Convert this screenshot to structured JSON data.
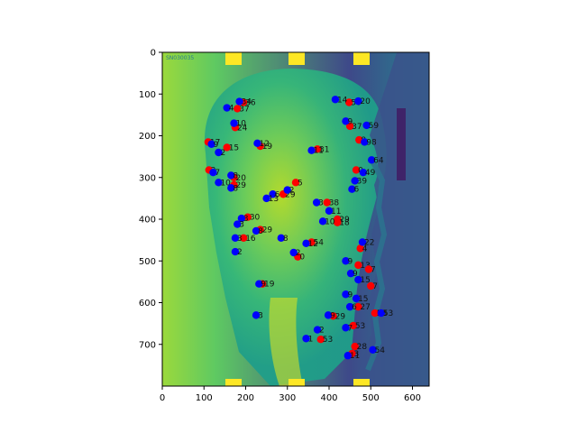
{
  "chart_data": {
    "type": "scatter",
    "title": "",
    "xlabel": "",
    "ylabel": "",
    "xlim": [
      0,
      640
    ],
    "ylim": [
      800,
      0
    ],
    "y_inverted": true,
    "background": "grayscale lateral cephalometric x-ray rendered with viridis colormap",
    "image_corner_text": "SN030035",
    "colors": {
      "red": "#ff0000",
      "blue": "#0000ff"
    },
    "x_ticks": [
      "0",
      "100",
      "200",
      "300",
      "400",
      "500",
      "600"
    ],
    "y_ticks": [
      "0",
      "100",
      "200",
      "300",
      "400",
      "500",
      "600",
      "700"
    ],
    "series": [
      {
        "color": "red",
        "points": [
          {
            "x": 195,
            "y": 120,
            "label": "36"
          },
          {
            "x": 180,
            "y": 135,
            "label": "37"
          },
          {
            "x": 175,
            "y": 180,
            "label": "24"
          },
          {
            "x": 235,
            "y": 225,
            "label": "19"
          },
          {
            "x": 110,
            "y": 215,
            "label": "17"
          },
          {
            "x": 155,
            "y": 228,
            "label": "15"
          },
          {
            "x": 112,
            "y": 282,
            "label": "2"
          },
          {
            "x": 172,
            "y": 300,
            "label": "20"
          },
          {
            "x": 172,
            "y": 318,
            "label": "29"
          },
          {
            "x": 372,
            "y": 232,
            "label": "31"
          },
          {
            "x": 448,
            "y": 120,
            "label": "50"
          },
          {
            "x": 450,
            "y": 177,
            "label": "37"
          },
          {
            "x": 472,
            "y": 210,
            "label": "8"
          },
          {
            "x": 465,
            "y": 282,
            "label": "0"
          },
          {
            "x": 290,
            "y": 340,
            "label": "29"
          },
          {
            "x": 320,
            "y": 312,
            "label": "5"
          },
          {
            "x": 205,
            "y": 395,
            "label": "30"
          },
          {
            "x": 235,
            "y": 425,
            "label": "29"
          },
          {
            "x": 195,
            "y": 445,
            "label": "16"
          },
          {
            "x": 395,
            "y": 360,
            "label": "38"
          },
          {
            "x": 420,
            "y": 400,
            "label": "29"
          },
          {
            "x": 420,
            "y": 408,
            "label": "18"
          },
          {
            "x": 325,
            "y": 490,
            "label": "0"
          },
          {
            "x": 358,
            "y": 455,
            "label": "54"
          },
          {
            "x": 240,
            "y": 555,
            "label": "19"
          },
          {
            "x": 475,
            "y": 470,
            "label": "4"
          },
          {
            "x": 470,
            "y": 510,
            "label": "13"
          },
          {
            "x": 495,
            "y": 520,
            "label": "7"
          },
          {
            "x": 500,
            "y": 560,
            "label": "7"
          },
          {
            "x": 470,
            "y": 610,
            "label": "27"
          },
          {
            "x": 458,
            "y": 655,
            "label": "53"
          },
          {
            "x": 510,
            "y": 625,
            "label": "53"
          },
          {
            "x": 410,
            "y": 632,
            "label": "29"
          },
          {
            "x": 380,
            "y": 688,
            "label": "53"
          },
          {
            "x": 462,
            "y": 705,
            "label": "28"
          },
          {
            "x": 455,
            "y": 722,
            "label": "3"
          }
        ]
      },
      {
        "color": "blue",
        "points": [
          {
            "x": 185,
            "y": 118,
            "label": "34"
          },
          {
            "x": 155,
            "y": 133,
            "label": "4"
          },
          {
            "x": 172,
            "y": 170,
            "label": "10"
          },
          {
            "x": 228,
            "y": 218,
            "label": "12"
          },
          {
            "x": 118,
            "y": 220,
            "label": "9"
          },
          {
            "x": 135,
            "y": 240,
            "label": "2"
          },
          {
            "x": 122,
            "y": 288,
            "label": "7"
          },
          {
            "x": 165,
            "y": 295,
            "label": "8"
          },
          {
            "x": 135,
            "y": 312,
            "label": "10"
          },
          {
            "x": 165,
            "y": 325,
            "label": "8"
          },
          {
            "x": 358,
            "y": 235,
            "label": "11"
          },
          {
            "x": 415,
            "y": 113,
            "label": "14"
          },
          {
            "x": 470,
            "y": 117,
            "label": "20"
          },
          {
            "x": 440,
            "y": 165,
            "label": "9"
          },
          {
            "x": 490,
            "y": 175,
            "label": "59"
          },
          {
            "x": 485,
            "y": 215,
            "label": "98"
          },
          {
            "x": 502,
            "y": 258,
            "label": "64"
          },
          {
            "x": 482,
            "y": 288,
            "label": "49"
          },
          {
            "x": 462,
            "y": 308,
            "label": "39"
          },
          {
            "x": 455,
            "y": 328,
            "label": "6"
          },
          {
            "x": 300,
            "y": 330,
            "label": "2"
          },
          {
            "x": 265,
            "y": 340,
            "label": "6"
          },
          {
            "x": 250,
            "y": 350,
            "label": "13"
          },
          {
            "x": 190,
            "y": 398,
            "label": "3"
          },
          {
            "x": 180,
            "y": 412,
            "label": "3"
          },
          {
            "x": 225,
            "y": 428,
            "label": "8"
          },
          {
            "x": 175,
            "y": 445,
            "label": "3"
          },
          {
            "x": 175,
            "y": 478,
            "label": "2"
          },
          {
            "x": 285,
            "y": 445,
            "label": "8"
          },
          {
            "x": 370,
            "y": 360,
            "label": "3"
          },
          {
            "x": 400,
            "y": 380,
            "label": "11"
          },
          {
            "x": 385,
            "y": 405,
            "label": "10"
          },
          {
            "x": 315,
            "y": 480,
            "label": "2"
          },
          {
            "x": 345,
            "y": 458,
            "label": "12"
          },
          {
            "x": 480,
            "y": 455,
            "label": "22"
          },
          {
            "x": 440,
            "y": 500,
            "label": "9"
          },
          {
            "x": 452,
            "y": 530,
            "label": "9"
          },
          {
            "x": 470,
            "y": 545,
            "label": "15"
          },
          {
            "x": 232,
            "y": 555,
            "label": "9"
          },
          {
            "x": 440,
            "y": 580,
            "label": "9"
          },
          {
            "x": 465,
            "y": 590,
            "label": "15"
          },
          {
            "x": 450,
            "y": 610,
            "label": "6"
          },
          {
            "x": 398,
            "y": 630,
            "label": "9"
          },
          {
            "x": 225,
            "y": 630,
            "label": "3"
          },
          {
            "x": 372,
            "y": 665,
            "label": "2"
          },
          {
            "x": 345,
            "y": 686,
            "label": "1"
          },
          {
            "x": 440,
            "y": 660,
            "label": "7"
          },
          {
            "x": 525,
            "y": 625,
            "label": "53"
          },
          {
            "x": 505,
            "y": 713,
            "label": "54"
          },
          {
            "x": 445,
            "y": 727,
            "label": "11"
          }
        ]
      }
    ]
  }
}
